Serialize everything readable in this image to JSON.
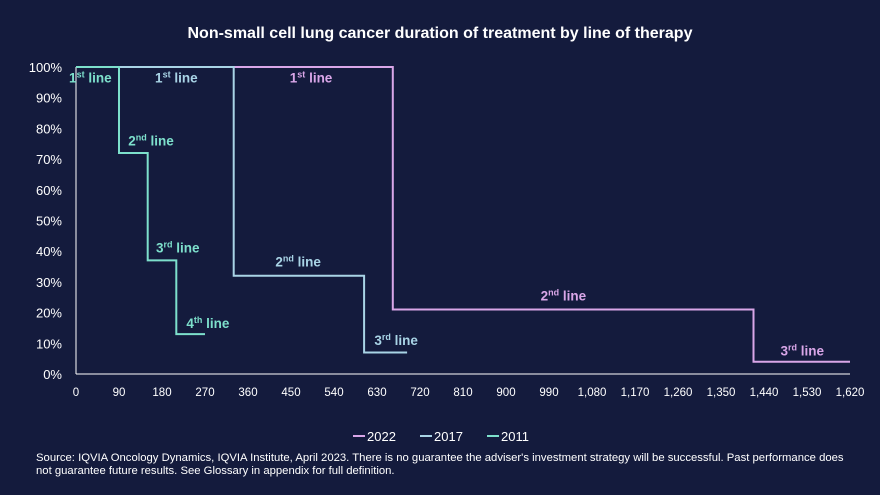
{
  "chart_data": {
    "type": "line",
    "step": true,
    "title": "Non-small cell lung cancer duration of treatment by line of therapy",
    "xlabel": "",
    "ylabel": "",
    "xlim": [
      0,
      1620
    ],
    "ylim": [
      0,
      100
    ],
    "x_ticks": [
      0,
      90,
      180,
      270,
      360,
      450,
      540,
      630,
      720,
      810,
      900,
      990,
      1080,
      1170,
      1260,
      1350,
      1440,
      1530,
      1620
    ],
    "x_tick_labels": [
      "0",
      "90",
      "180",
      "270",
      "360",
      "450",
      "540",
      "630",
      "720",
      "810",
      "900",
      "990",
      "1,080",
      "1,170",
      "1,260",
      "1,350",
      "1,440",
      "1,530",
      "1,620"
    ],
    "y_ticks": [
      0,
      10,
      20,
      30,
      40,
      50,
      60,
      70,
      80,
      90,
      100
    ],
    "y_tick_labels": [
      "0%",
      "10%",
      "20%",
      "30%",
      "40%",
      "50%",
      "60%",
      "70%",
      "80%",
      "90%",
      "100%"
    ],
    "series": [
      {
        "name": "2022",
        "color": "#d9a6e8",
        "points": [
          [
            330,
            100
          ],
          [
            663,
            100
          ],
          [
            663,
            21
          ],
          [
            1418,
            21
          ],
          [
            1418,
            4
          ],
          [
            1620,
            4
          ]
        ],
        "annotations": [
          {
            "base": "1",
            "sup": "st",
            "rest": " line",
            "x": 492,
            "y": 95
          },
          {
            "base": "2",
            "sup": "nd",
            "rest": " line",
            "x": 1020,
            "y": 24
          },
          {
            "base": "3",
            "sup": "rd",
            "rest": " line",
            "x": 1520,
            "y": 6
          }
        ]
      },
      {
        "name": "2017",
        "color": "#a9d4e6",
        "points": [
          [
            90,
            100
          ],
          [
            330,
            100
          ],
          [
            330,
            32
          ],
          [
            603,
            32
          ],
          [
            603,
            7
          ],
          [
            693,
            7
          ]
        ],
        "annotations": [
          {
            "base": "1",
            "sup": "st",
            "rest": " line",
            "x": 210,
            "y": 95
          },
          {
            "base": "2",
            "sup": "nd",
            "rest": " line",
            "x": 465,
            "y": 35
          },
          {
            "base": "3",
            "sup": "rd",
            "rest": " line",
            "x": 670,
            "y": 9.5
          }
        ]
      },
      {
        "name": "2011",
        "color": "#7de0cc",
        "points": [
          [
            0,
            100
          ],
          [
            90,
            100
          ],
          [
            90,
            72
          ],
          [
            150,
            72
          ],
          [
            150,
            37
          ],
          [
            210,
            37
          ],
          [
            210,
            13
          ],
          [
            270,
            13
          ]
        ],
        "annotations": [
          {
            "base": "1",
            "sup": "st",
            "rest": " line",
            "x": 30,
            "y": 95
          },
          {
            "base": "2",
            "sup": "nd",
            "rest": " line",
            "x": 157,
            "y": 74.5
          },
          {
            "base": "3",
            "sup": "rd",
            "rest": " line",
            "x": 213,
            "y": 39.5
          },
          {
            "base": "4",
            "sup": "th",
            "rest": " line",
            "x": 276,
            "y": 15
          }
        ]
      }
    ],
    "legend": {
      "position": "bottom-right",
      "entries": [
        "2022",
        "2017",
        "2011"
      ]
    }
  },
  "source_note": "Source:  IQVIA Oncology Dynamics, IQVIA Institute, April 2023. There is no guarantee the adviser's investment strategy will be successful. Past performance does not guarantee future results. See Glossary in appendix for full definition."
}
